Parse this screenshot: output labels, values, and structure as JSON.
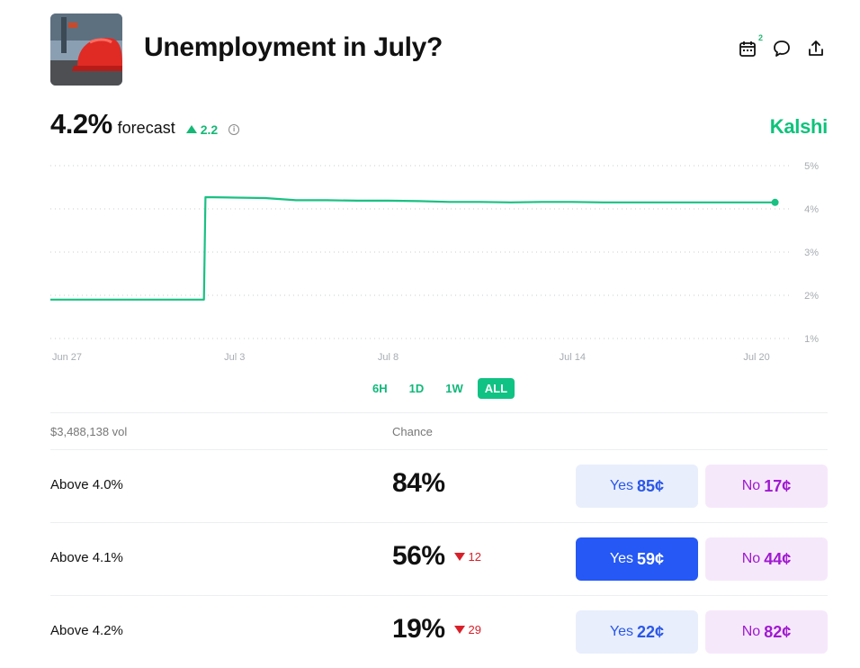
{
  "header": {
    "title": "Unemployment in July?",
    "calendar_badge": "2"
  },
  "forecast": {
    "value": "4.2%",
    "label": "forecast",
    "delta": "2.2",
    "delta_direction": "up"
  },
  "brand": "Kalshi",
  "colors": {
    "accent": "#10c283",
    "line": "#19c183",
    "yes_text": "#2a57e8",
    "yes_active": "#2558f5",
    "no_text": "#a019d1",
    "down": "#d9202a"
  },
  "chart_data": {
    "type": "line",
    "x_ticks": [
      "Jun 27",
      "Jul 3",
      "Jul 8",
      "Jul 14",
      "Jul 20"
    ],
    "y_ticks": [
      "5%",
      "4%",
      "3%",
      "2%",
      "1%"
    ],
    "ylim": [
      1,
      5
    ],
    "series": [
      {
        "points": [
          [
            "Jun 27",
            1.9
          ],
          [
            "Jun 28",
            1.9
          ],
          [
            "Jun 29",
            1.9
          ],
          [
            "Jun 30",
            1.9
          ],
          [
            "Jul 1",
            1.9
          ],
          [
            "Jul 2",
            1.9
          ],
          [
            "Jul 2",
            4.27
          ],
          [
            "Jul 3",
            4.26
          ],
          [
            "Jul 4",
            4.25
          ],
          [
            "Jul 5",
            4.2
          ],
          [
            "Jul 6",
            4.2
          ],
          [
            "Jul 7",
            4.19
          ],
          [
            "Jul 8",
            4.19
          ],
          [
            "Jul 9",
            4.18
          ],
          [
            "Jul 10",
            4.16
          ],
          [
            "Jul 11",
            4.16
          ],
          [
            "Jul 12",
            4.15
          ],
          [
            "Jul 13",
            4.16
          ],
          [
            "Jul 14",
            4.16
          ],
          [
            "Jul 15",
            4.15
          ],
          [
            "Jul 16",
            4.15
          ],
          [
            "Jul 17",
            4.15
          ],
          [
            "Jul 18",
            4.15
          ],
          [
            "Jul 19",
            4.15
          ],
          [
            "Jul 20",
            4.15
          ],
          [
            "Jul 20",
            4.15
          ]
        ]
      }
    ],
    "grid": true
  },
  "ranges": [
    "6H",
    "1D",
    "1W",
    "ALL"
  ],
  "active_range": "ALL",
  "table": {
    "volume": "$3,488,138 vol",
    "chance_header": "Chance",
    "rows": [
      {
        "label": "Above 4.0%",
        "chance": "84%",
        "delta": "",
        "yes_label": "Yes",
        "yes_price": "85¢",
        "no_label": "No",
        "no_price": "17¢",
        "yes_active": false
      },
      {
        "label": "Above 4.1%",
        "chance": "56%",
        "delta": "12",
        "yes_label": "Yes",
        "yes_price": "59¢",
        "no_label": "No",
        "no_price": "44¢",
        "yes_active": true
      },
      {
        "label": "Above 4.2%",
        "chance": "19%",
        "delta": "29",
        "yes_label": "Yes",
        "yes_price": "22¢",
        "no_label": "No",
        "no_price": "82¢",
        "yes_active": false
      }
    ]
  }
}
